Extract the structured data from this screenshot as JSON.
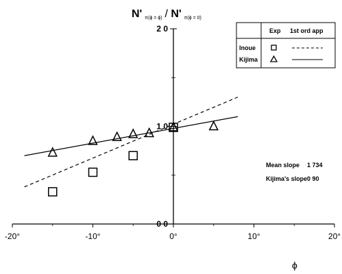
{
  "chart_data": {
    "type": "scatter",
    "title_main": "N'",
    "title_sub_left": "π(ϕ = ϕ)",
    "title_sep": " / ",
    "title_main_2": "N'",
    "title_sub_right": "π(ϕ = 0)",
    "xlabel": "ϕ",
    "xlim": [
      -20,
      20
    ],
    "ylim": [
      0,
      2.0
    ],
    "xticks": [
      -20,
      -10,
      0,
      10,
      20
    ],
    "xtick_labels": [
      "-20°",
      "-10°",
      "0°",
      "10°",
      "20°"
    ],
    "yticks": [
      0,
      1.0,
      2.0
    ],
    "ytick_labels": [
      "0 0",
      "1 0",
      "2 0"
    ],
    "series": [
      {
        "name": "Inoue",
        "marker": "square",
        "points": [
          [
            -15,
            0.33
          ],
          [
            -10,
            0.53
          ],
          [
            -5,
            0.7
          ],
          [
            0,
            0.99
          ]
        ],
        "fit": {
          "style": "dashed",
          "x": [
            -18.5,
            8
          ],
          "y": [
            0.38,
            1.3
          ]
        }
      },
      {
        "name": "Kijima",
        "marker": "triangle",
        "points": [
          [
            -15,
            0.73
          ],
          [
            -10,
            0.85
          ],
          [
            -7,
            0.89
          ],
          [
            -5,
            0.92
          ],
          [
            -3,
            0.93
          ],
          [
            0,
            0.99
          ],
          [
            5,
            1.0
          ]
        ],
        "fit": {
          "style": "solid",
          "x": [
            -18.5,
            8
          ],
          "y": [
            0.7,
            1.1
          ]
        }
      }
    ],
    "legend": {
      "position": "top-right",
      "header_exp": "Exp",
      "header_app": "1st ord  app",
      "rows": [
        {
          "label": "Inoue",
          "marker": "□",
          "line": "dashed"
        },
        {
          "label": "Kijima",
          "marker": "△",
          "line": "solid"
        }
      ]
    },
    "annotations": {
      "mean_slope_label": "Mean slope",
      "mean_slope_value": "1 734",
      "kijima_slope_label": "Kijima's slope",
      "kijima_slope_value": "0 90"
    }
  }
}
